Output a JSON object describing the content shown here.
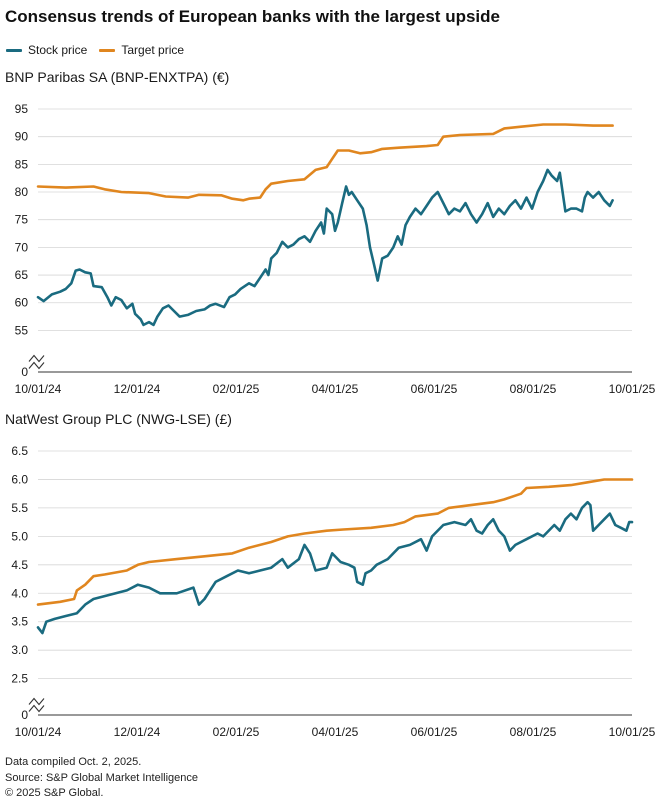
{
  "title": "Consensus trends of European banks with the largest upside",
  "legend": {
    "stock_label": "Stock price",
    "target_label": "Target price",
    "stock_color": "#1a6b80",
    "target_color": "#e0861f"
  },
  "chart_data": [
    {
      "type": "line",
      "title": "BNP Paribas SA (BNP-ENXTPA) (€)",
      "x_tick_labels": [
        "10/01/24",
        "12/01/24",
        "02/01/25",
        "04/01/25",
        "06/01/25",
        "08/01/25",
        "10/01/25"
      ],
      "y_ticks": [
        0,
        55,
        60,
        65,
        70,
        75,
        80,
        85,
        90,
        95
      ],
      "y_tick_labels": [
        "0",
        "55",
        "60",
        "65",
        "70",
        "75",
        "80",
        "85",
        "90",
        "95"
      ],
      "ylim": [
        52,
        95
      ],
      "axis_break": true,
      "series": [
        {
          "name": "Stock price",
          "points": [
            [
              0,
              61
            ],
            [
              0.01,
              60.3
            ],
            [
              0.025,
              61.5
            ],
            [
              0.04,
              62
            ],
            [
              0.05,
              62.5
            ],
            [
              0.06,
              63.5
            ],
            [
              0.068,
              65.8
            ],
            [
              0.075,
              66
            ],
            [
              0.085,
              65.5
            ],
            [
              0.095,
              65.3
            ],
            [
              0.1,
              63
            ],
            [
              0.115,
              62.8
            ],
            [
              0.125,
              61
            ],
            [
              0.132,
              59.5
            ],
            [
              0.14,
              61
            ],
            [
              0.15,
              60.5
            ],
            [
              0.16,
              59
            ],
            [
              0.17,
              59.8
            ],
            [
              0.175,
              58
            ],
            [
              0.185,
              57
            ],
            [
              0.19,
              56
            ],
            [
              0.2,
              56.5
            ],
            [
              0.208,
              56
            ],
            [
              0.215,
              57.5
            ],
            [
              0.225,
              59
            ],
            [
              0.235,
              59.5
            ],
            [
              0.245,
              58.5
            ],
            [
              0.255,
              57.5
            ],
            [
              0.27,
              57.8
            ],
            [
              0.285,
              58.5
            ],
            [
              0.3,
              58.8
            ],
            [
              0.31,
              59.5
            ],
            [
              0.32,
              59.8
            ],
            [
              0.335,
              59.2
            ],
            [
              0.345,
              61
            ],
            [
              0.355,
              61.5
            ],
            [
              0.365,
              62.5
            ],
            [
              0.38,
              63.5
            ],
            [
              0.39,
              63
            ],
            [
              0.4,
              64.5
            ],
            [
              0.41,
              66
            ],
            [
              0.415,
              65
            ],
            [
              0.42,
              68
            ],
            [
              0.43,
              69
            ],
            [
              0.44,
              71
            ],
            [
              0.45,
              70
            ],
            [
              0.46,
              70.5
            ],
            [
              0.47,
              71.5
            ],
            [
              0.48,
              72
            ],
            [
              0.49,
              71
            ],
            [
              0.5,
              73
            ],
            [
              0.51,
              74.5
            ],
            [
              0.515,
              72.5
            ],
            [
              0.52,
              77
            ],
            [
              0.53,
              76
            ],
            [
              0.535,
              73
            ],
            [
              0.54,
              74.5
            ],
            [
              0.548,
              78
            ],
            [
              0.555,
              81
            ],
            [
              0.56,
              79.5
            ],
            [
              0.565,
              80
            ],
            [
              0.575,
              78.5
            ],
            [
              0.585,
              77
            ],
            [
              0.592,
              74
            ],
            [
              0.598,
              70
            ],
            [
              0.605,
              67
            ],
            [
              0.612,
              64
            ],
            [
              0.62,
              68
            ],
            [
              0.63,
              68.5
            ],
            [
              0.64,
              70
            ],
            [
              0.648,
              72
            ],
            [
              0.655,
              70.5
            ],
            [
              0.662,
              74
            ],
            [
              0.67,
              75.5
            ],
            [
              0.68,
              77
            ],
            [
              0.69,
              76
            ],
            [
              0.7,
              77.5
            ],
            [
              0.71,
              79
            ],
            [
              0.72,
              80
            ],
            [
              0.73,
              78
            ],
            [
              0.74,
              76
            ],
            [
              0.75,
              77
            ],
            [
              0.76,
              76.5
            ],
            [
              0.77,
              78
            ],
            [
              0.78,
              76
            ],
            [
              0.79,
              74.5
            ],
            [
              0.8,
              76
            ],
            [
              0.81,
              78
            ],
            [
              0.82,
              75.5
            ],
            [
              0.83,
              77
            ],
            [
              0.84,
              76
            ],
            [
              0.85,
              77.5
            ],
            [
              0.86,
              78.5
            ],
            [
              0.87,
              77
            ],
            [
              0.88,
              79
            ],
            [
              0.89,
              77
            ],
            [
              0.9,
              80
            ],
            [
              0.91,
              82
            ],
            [
              0.918,
              84
            ],
            [
              0.925,
              83
            ],
            [
              0.935,
              82
            ],
            [
              0.94,
              83.5
            ],
            [
              0.95,
              76.5
            ],
            [
              0.96,
              77
            ],
            [
              0.97,
              77
            ],
            [
              0.98,
              76.5
            ],
            [
              0.985,
              79
            ],
            [
              0.99,
              80
            ],
            [
              1.0,
              79
            ],
            [
              1.01,
              80
            ],
            [
              1.02,
              78.5
            ],
            [
              1.03,
              77.5
            ],
            [
              1.035,
              78.5
            ]
          ]
        },
        {
          "name": "Target price",
          "points": [
            [
              0,
              81
            ],
            [
              0.05,
              80.8
            ],
            [
              0.1,
              81
            ],
            [
              0.12,
              80.5
            ],
            [
              0.15,
              80
            ],
            [
              0.2,
              79.8
            ],
            [
              0.23,
              79.2
            ],
            [
              0.27,
              79
            ],
            [
              0.29,
              79.5
            ],
            [
              0.33,
              79.4
            ],
            [
              0.35,
              78.8
            ],
            [
              0.37,
              78.5
            ],
            [
              0.38,
              78.8
            ],
            [
              0.4,
              79
            ],
            [
              0.41,
              80.5
            ],
            [
              0.42,
              81.5
            ],
            [
              0.45,
              82
            ],
            [
              0.48,
              82.3
            ],
            [
              0.5,
              84
            ],
            [
              0.52,
              84.5
            ],
            [
              0.53,
              86
            ],
            [
              0.54,
              87.5
            ],
            [
              0.56,
              87.5
            ],
            [
              0.58,
              87
            ],
            [
              0.6,
              87.2
            ],
            [
              0.62,
              87.8
            ],
            [
              0.65,
              88
            ],
            [
              0.7,
              88.3
            ],
            [
              0.72,
              88.5
            ],
            [
              0.73,
              90
            ],
            [
              0.76,
              90.3
            ],
            [
              0.82,
              90.5
            ],
            [
              0.84,
              91.5
            ],
            [
              0.87,
              91.8
            ],
            [
              0.91,
              92.2
            ],
            [
              0.95,
              92.2
            ],
            [
              1.0,
              92
            ],
            [
              1.035,
              92
            ]
          ]
        }
      ]
    },
    {
      "type": "line",
      "title": "NatWest Group PLC (NWG-LSE) (£)",
      "x_tick_labels": [
        "10/01/24",
        "12/01/24",
        "02/01/25",
        "04/01/25",
        "06/01/25",
        "08/01/25",
        "10/01/25"
      ],
      "y_ticks": [
        0,
        2.5,
        3.0,
        3.5,
        4.0,
        4.5,
        5.0,
        5.5,
        6.0,
        6.5
      ],
      "y_tick_labels": [
        "0",
        "2.5",
        "3.0",
        "3.5",
        "4.0",
        "4.5",
        "5.0",
        "5.5",
        "6.0",
        "6.5"
      ],
      "ylim": [
        2.3,
        6.5
      ],
      "axis_break": true,
      "series": [
        {
          "name": "Stock price",
          "points": [
            [
              0,
              3.4
            ],
            [
              0.008,
              3.3
            ],
            [
              0.015,
              3.5
            ],
            [
              0.03,
              3.55
            ],
            [
              0.05,
              3.6
            ],
            [
              0.07,
              3.65
            ],
            [
              0.085,
              3.8
            ],
            [
              0.1,
              3.9
            ],
            [
              0.12,
              3.95
            ],
            [
              0.14,
              4.0
            ],
            [
              0.16,
              4.05
            ],
            [
              0.18,
              4.15
            ],
            [
              0.2,
              4.1
            ],
            [
              0.22,
              4.0
            ],
            [
              0.25,
              4.0
            ],
            [
              0.28,
              4.1
            ],
            [
              0.29,
              3.8
            ],
            [
              0.3,
              3.9
            ],
            [
              0.32,
              4.2
            ],
            [
              0.34,
              4.3
            ],
            [
              0.36,
              4.4
            ],
            [
              0.38,
              4.35
            ],
            [
              0.4,
              4.4
            ],
            [
              0.42,
              4.45
            ],
            [
              0.44,
              4.6
            ],
            [
              0.45,
              4.45
            ],
            [
              0.47,
              4.6
            ],
            [
              0.48,
              4.85
            ],
            [
              0.49,
              4.7
            ],
            [
              0.5,
              4.4
            ],
            [
              0.52,
              4.45
            ],
            [
              0.53,
              4.7
            ],
            [
              0.545,
              4.55
            ],
            [
              0.56,
              4.5
            ],
            [
              0.57,
              4.45
            ],
            [
              0.575,
              4.2
            ],
            [
              0.585,
              4.15
            ],
            [
              0.59,
              4.35
            ],
            [
              0.6,
              4.4
            ],
            [
              0.61,
              4.5
            ],
            [
              0.63,
              4.6
            ],
            [
              0.65,
              4.8
            ],
            [
              0.67,
              4.85
            ],
            [
              0.69,
              4.95
            ],
            [
              0.7,
              4.75
            ],
            [
              0.71,
              5.0
            ],
            [
              0.73,
              5.2
            ],
            [
              0.75,
              5.25
            ],
            [
              0.77,
              5.2
            ],
            [
              0.78,
              5.3
            ],
            [
              0.79,
              5.1
            ],
            [
              0.8,
              5.05
            ],
            [
              0.81,
              5.2
            ],
            [
              0.82,
              5.3
            ],
            [
              0.83,
              5.1
            ],
            [
              0.84,
              5.0
            ],
            [
              0.85,
              4.75
            ],
            [
              0.86,
              4.85
            ],
            [
              0.88,
              4.95
            ],
            [
              0.9,
              5.05
            ],
            [
              0.91,
              5.0
            ],
            [
              0.93,
              5.2
            ],
            [
              0.94,
              5.1
            ],
            [
              0.95,
              5.3
            ],
            [
              0.96,
              5.4
            ],
            [
              0.97,
              5.3
            ],
            [
              0.98,
              5.5
            ],
            [
              0.985,
              5.55
            ],
            [
              0.99,
              5.6
            ],
            [
              0.995,
              5.55
            ],
            [
              1.0,
              5.1
            ],
            [
              1.01,
              5.2
            ],
            [
              1.02,
              5.3
            ],
            [
              1.03,
              5.4
            ],
            [
              1.04,
              5.2
            ],
            [
              1.05,
              5.15
            ],
            [
              1.06,
              5.1
            ],
            [
              1.065,
              5.25
            ],
            [
              1.07,
              5.25
            ]
          ]
        },
        {
          "name": "Target price",
          "points": [
            [
              0,
              3.8
            ],
            [
              0.04,
              3.85
            ],
            [
              0.065,
              3.9
            ],
            [
              0.07,
              4.05
            ],
            [
              0.085,
              4.15
            ],
            [
              0.1,
              4.3
            ],
            [
              0.12,
              4.33
            ],
            [
              0.16,
              4.4
            ],
            [
              0.18,
              4.5
            ],
            [
              0.2,
              4.55
            ],
            [
              0.25,
              4.6
            ],
            [
              0.3,
              4.65
            ],
            [
              0.35,
              4.7
            ],
            [
              0.38,
              4.8
            ],
            [
              0.42,
              4.9
            ],
            [
              0.45,
              5.0
            ],
            [
              0.48,
              5.05
            ],
            [
              0.52,
              5.1
            ],
            [
              0.55,
              5.12
            ],
            [
              0.6,
              5.15
            ],
            [
              0.64,
              5.2
            ],
            [
              0.66,
              5.25
            ],
            [
              0.68,
              5.35
            ],
            [
              0.72,
              5.4
            ],
            [
              0.74,
              5.5
            ],
            [
              0.78,
              5.55
            ],
            [
              0.82,
              5.6
            ],
            [
              0.84,
              5.65
            ],
            [
              0.87,
              5.75
            ],
            [
              0.88,
              5.85
            ],
            [
              0.92,
              5.87
            ],
            [
              0.96,
              5.9
            ],
            [
              0.99,
              5.95
            ],
            [
              1.02,
              6.0
            ],
            [
              1.07,
              6.0
            ]
          ]
        }
      ]
    }
  ],
  "notes": {
    "line1": "Data compiled Oct. 2, 2025.",
    "line2": "Source: S&P Global Market Intelligence",
    "line3": "© 2025 S&P Global."
  }
}
